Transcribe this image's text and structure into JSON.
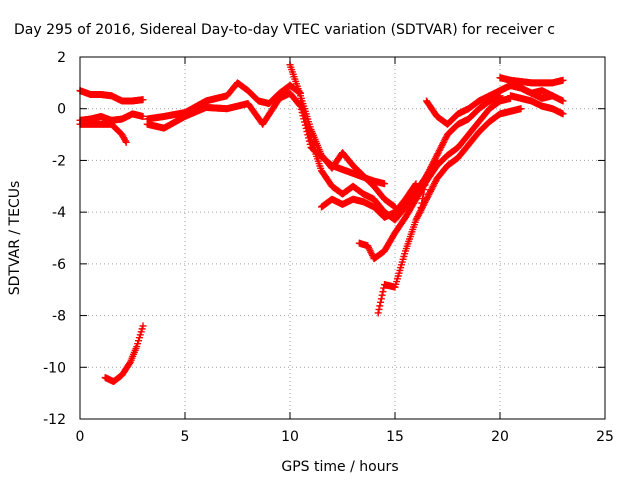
{
  "chart_data": {
    "type": "scatter",
    "title": "Day 295 of 2016, Sidereal Day-to-day VTEC variation (SDTVAR) for receiver c",
    "xlabel": "GPS time / hours",
    "ylabel": "SDTVAR / TECUs",
    "xlim": [
      0,
      25
    ],
    "ylim": [
      -12,
      2
    ],
    "xticks": [
      0,
      5,
      10,
      15,
      20,
      25
    ],
    "yticks": [
      -12,
      -10,
      -8,
      -6,
      -4,
      -2,
      0,
      2
    ],
    "xtick_labels": [
      "0",
      "5",
      "10",
      "15",
      "20",
      "25"
    ],
    "ytick_labels": [
      "-12",
      "-10",
      "-8",
      "-6",
      "-4",
      "-2",
      "0",
      "2"
    ],
    "grid": true,
    "marker": "+",
    "color": "#ff0000",
    "series": [
      {
        "x": [
          0.0,
          0.5,
          1.0,
          1.5,
          2.0,
          2.5,
          3.0
        ],
        "y": [
          0.7,
          0.55,
          0.55,
          0.5,
          0.3,
          0.3,
          0.35
        ]
      },
      {
        "x": [
          0.0,
          0.5,
          1.0,
          1.5,
          2.0,
          2.5,
          3.0
        ],
        "y": [
          -0.45,
          -0.4,
          -0.3,
          -0.45,
          -0.4,
          -0.2,
          -0.3
        ]
      },
      {
        "x": [
          0.0,
          0.5,
          1.0,
          1.5,
          2.0,
          2.2
        ],
        "y": [
          -0.6,
          -0.6,
          -0.6,
          -0.6,
          -1.0,
          -1.3
        ]
      },
      {
        "x": [
          1.2,
          1.6,
          2.0,
          2.4,
          2.7,
          3.0
        ],
        "y": [
          -10.4,
          -10.55,
          -10.3,
          -9.8,
          -9.2,
          -8.4
        ]
      },
      {
        "x": [
          3.2,
          4.0,
          5.0,
          6.0,
          7.0,
          7.5,
          8.0,
          8.5,
          9.0,
          9.5,
          10.0,
          10.5
        ],
        "y": [
          -0.4,
          -0.3,
          -0.15,
          0.3,
          0.5,
          1.0,
          0.7,
          0.3,
          0.2,
          0.6,
          0.9,
          0.6
        ]
      },
      {
        "x": [
          3.2,
          4.0,
          5.0,
          6.0,
          7.0,
          8.0,
          8.7,
          9.5,
          10.0,
          10.5,
          11.0,
          12.0,
          13.0,
          14.0,
          14.5
        ],
        "y": [
          -0.6,
          -0.75,
          -0.3,
          0.05,
          0.0,
          0.2,
          -0.6,
          0.4,
          0.6,
          0.1,
          -1.5,
          -2.2,
          -2.5,
          -2.8,
          -2.9
        ]
      },
      {
        "x": [
          10.0,
          10.5,
          11.0,
          11.5,
          12.0,
          12.5,
          13.0,
          13.5,
          14.0,
          14.5,
          15.0
        ],
        "y": [
          1.7,
          0.5,
          -0.8,
          -1.8,
          -2.3,
          -1.7,
          -2.2,
          -2.6,
          -3.0,
          -3.5,
          -3.8
        ]
      },
      {
        "x": [
          10.5,
          11.0,
          11.5,
          12.0,
          12.5,
          13.0,
          13.5,
          14.0,
          14.5,
          15.0,
          15.5,
          16.0,
          16.5,
          17.0
        ],
        "y": [
          0.3,
          -1.2,
          -2.4,
          -3.0,
          -3.3,
          -3.0,
          -3.3,
          -3.5,
          -4.0,
          -4.3,
          -3.8,
          -3.2,
          -2.6,
          -2.0
        ]
      },
      {
        "x": [
          11.5,
          12.0,
          12.5,
          13.0,
          13.5,
          14.0,
          14.5,
          15.0,
          15.5,
          16.0
        ],
        "y": [
          -3.8,
          -3.5,
          -3.7,
          -3.5,
          -3.6,
          -3.8,
          -4.2,
          -4.0,
          -3.5,
          -2.9
        ]
      },
      {
        "x": [
          13.3,
          13.7,
          14.0,
          14.5,
          15.0,
          15.5,
          16.0,
          16.5,
          17.0,
          17.5,
          18.0,
          18.5,
          19.0,
          19.5,
          20.0,
          20.5
        ],
        "y": [
          -5.2,
          -5.3,
          -5.8,
          -5.5,
          -4.8,
          -4.2,
          -3.5,
          -2.8,
          -2.2,
          -1.8,
          -1.5,
          -1.0,
          -0.5,
          0.0,
          0.3,
          0.4
        ]
      },
      {
        "x": [
          14.2,
          14.5,
          15.0,
          15.5,
          16.0,
          16.5,
          17.0,
          17.5,
          18.0,
          18.5,
          19.0,
          19.5,
          20.0,
          20.5,
          21.0
        ],
        "y": [
          -7.9,
          -6.8,
          -6.9,
          -5.5,
          -4.3,
          -3.5,
          -2.7,
          -2.2,
          -1.9,
          -1.4,
          -0.9,
          -0.5,
          -0.2,
          -0.1,
          0.0
        ]
      },
      {
        "x": [
          16.2,
          16.5,
          17.0,
          17.5,
          18.0,
          18.5,
          19.0,
          19.5,
          20.0
        ],
        "y": [
          -4.0,
          -2.6,
          -1.8,
          -1.0,
          -0.6,
          -0.4,
          0.0,
          0.3,
          0.5
        ]
      },
      {
        "x": [
          16.5,
          17.0,
          17.5,
          18.0,
          18.5,
          19.0,
          19.5,
          20.0,
          20.5,
          21.0,
          21.5,
          22.0,
          22.5
        ],
        "y": [
          0.3,
          -0.3,
          -0.6,
          -0.2,
          0.0,
          0.3,
          0.5,
          0.7,
          0.9,
          0.8,
          0.6,
          0.7,
          0.5
        ]
      },
      {
        "x": [
          20.0,
          20.5,
          21.0,
          21.5,
          22.0,
          22.5,
          23.0
        ],
        "y": [
          1.2,
          1.1,
          1.05,
          1.0,
          1.0,
          1.0,
          1.1
        ]
      },
      {
        "x": [
          20.0,
          20.5,
          21.0,
          21.5,
          22.0,
          22.5,
          23.0
        ],
        "y": [
          0.7,
          0.9,
          0.8,
          0.6,
          0.4,
          0.5,
          0.3
        ]
      },
      {
        "x": [
          20.5,
          21.0,
          21.5,
          22.0,
          22.5,
          23.0
        ],
        "y": [
          0.5,
          0.4,
          0.3,
          0.1,
          0.0,
          -0.2
        ]
      }
    ]
  }
}
